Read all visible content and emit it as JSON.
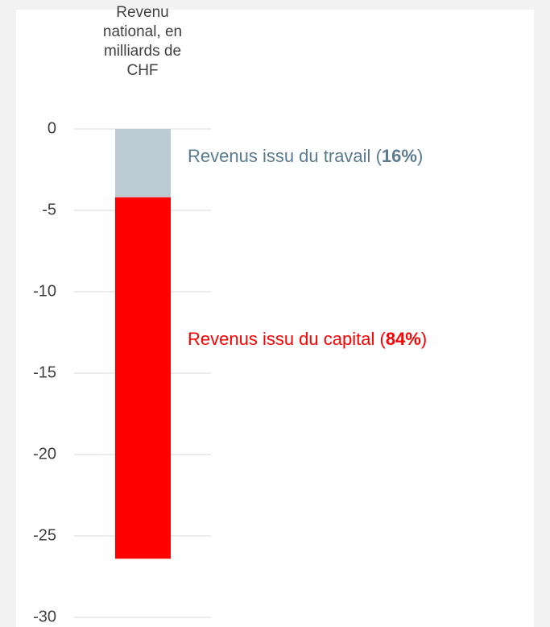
{
  "chart_data": {
    "type": "stacked_bar",
    "title": "Revenu national, en milliards de CHF",
    "categories": [
      null
    ],
    "series": [
      {
        "name": "Revenus issu du travail",
        "color": "#bccbd3",
        "label_color": "#5b7b90",
        "values": [
          -4.2
        ],
        "share_label": "16%"
      },
      {
        "name": "Revenus issu du capital",
        "color": "#ff0000",
        "label_color": "#ff0000",
        "values": [
          -22.2
        ],
        "share_label": "84%"
      }
    ],
    "ylim": [
      -30,
      0
    ],
    "yticks": [
      0,
      -5,
      -10,
      -15,
      -20,
      -25,
      -30
    ],
    "grid": true
  }
}
